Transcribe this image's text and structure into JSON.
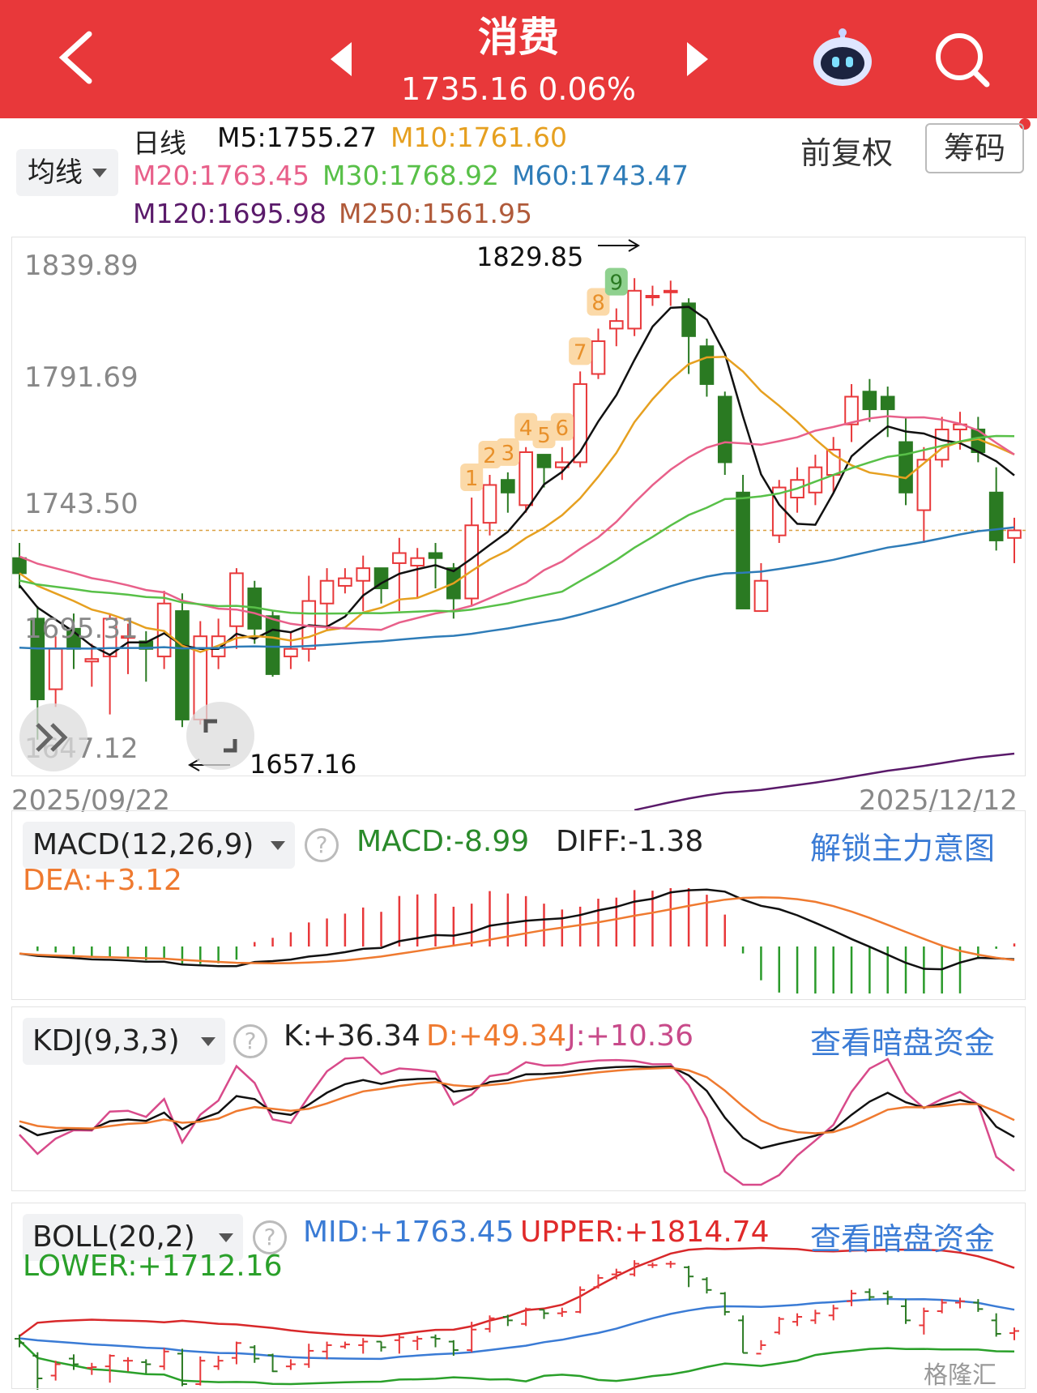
{
  "header": {
    "title": "消费",
    "price_line": "1735.16 0.06%"
  },
  "toolbar": {
    "ma_select": "均线",
    "period": "日线",
    "adjust": "前复权",
    "chips": "筹码"
  },
  "ma": {
    "m5": "M5:1755.27",
    "m10": "M10:1761.60",
    "m20": "M20:1763.45",
    "m30": "M30:1768.92",
    "m60": "M60:1743.47",
    "m120": "M120:1695.98",
    "m250": "M250:1561.95"
  },
  "price_axis": [
    "1839.89",
    "1791.69",
    "1743.50",
    "1695.31",
    "1647.12"
  ],
  "dates": {
    "start": "2025/09/22",
    "end": "2025/12/12"
  },
  "annotations": {
    "high": "1829.85",
    "low": "1657.16",
    "seq": [
      "1",
      "2",
      "3",
      "4",
      "5",
      "6",
      "7",
      "8",
      "9"
    ]
  },
  "macd": {
    "select": "MACD(12,26,9)",
    "macd": "MACD:-8.99",
    "diff": "DIFF:-1.38",
    "dea": "DEA:+3.12",
    "link": "解锁主力意图"
  },
  "kdj": {
    "select": "KDJ(9,3,3)",
    "k": "K:+36.34",
    "d": "D:+49.34",
    "j": "J:+10.36",
    "link": "查看暗盘资金"
  },
  "boll": {
    "select": "BOLL(20,2)",
    "mid": "MID:+1763.45",
    "upper": "UPPER:+1814.74",
    "lower": "LOWER:+1712.16",
    "link": "查看暗盘资金"
  },
  "watermark": "格隆汇",
  "colors": {
    "up": "#e8383a",
    "down": "#2a7a22",
    "m5": "#111111",
    "m10": "#e6a020",
    "m20": "#e8608a",
    "m30": "#58c048",
    "m60": "#2e7cb8",
    "m120": "#5a1a6a",
    "m250": "#b05a3a"
  },
  "chart_data": {
    "type": "candlestick",
    "ylim": [
      1647.12,
      1839.89
    ],
    "candles": [
      [
        1724,
        1718,
        1730,
        1712
      ],
      [
        1700,
        1668,
        1705,
        1652
      ],
      [
        1672,
        1688,
        1693,
        1665
      ],
      [
        1696,
        1688,
        1702,
        1680
      ],
      [
        1683,
        1684,
        1690,
        1673
      ],
      [
        1685,
        1700,
        1702,
        1662
      ],
      [
        1693,
        1693,
        1698,
        1678
      ],
      [
        1691,
        1688,
        1695,
        1675
      ],
      [
        1685,
        1706,
        1711,
        1680
      ],
      [
        1703,
        1660,
        1710,
        1657
      ],
      [
        1660,
        1693,
        1699,
        1658
      ],
      [
        1685,
        1693,
        1700,
        1680
      ],
      [
        1697,
        1718,
        1720,
        1688
      ],
      [
        1712,
        1696,
        1715,
        1690
      ],
      [
        1701,
        1678,
        1703,
        1677
      ],
      [
        1685,
        1688,
        1695,
        1680
      ],
      [
        1688,
        1707,
        1717,
        1683
      ],
      [
        1706,
        1715,
        1720,
        1695
      ],
      [
        1713,
        1716,
        1720,
        1710
      ],
      [
        1715,
        1720,
        1725,
        1703
      ],
      [
        1720,
        1712,
        1720,
        1706
      ],
      [
        1722,
        1726,
        1732,
        1703
      ],
      [
        1721,
        1724,
        1728,
        1708
      ],
      [
        1726,
        1724,
        1730,
        1712
      ],
      [
        1720,
        1708,
        1722,
        1700
      ],
      [
        1708,
        1737,
        1748,
        1705
      ],
      [
        1738,
        1753,
        1757,
        1733
      ],
      [
        1755,
        1750,
        1758,
        1742
      ],
      [
        1745,
        1766,
        1768,
        1742
      ],
      [
        1765,
        1760,
        1765,
        1752
      ],
      [
        1760,
        1762,
        1768,
        1755
      ],
      [
        1762,
        1793,
        1798,
        1760
      ],
      [
        1797,
        1810,
        1815,
        1795
      ],
      [
        1815,
        1818,
        1823,
        1808
      ],
      [
        1815,
        1830,
        1835,
        1812
      ],
      [
        1828,
        1828,
        1832,
        1824
      ],
      [
        1830,
        1830,
        1834,
        1824
      ],
      [
        1825,
        1812,
        1827,
        1797
      ],
      [
        1808,
        1793,
        1811,
        1788
      ],
      [
        1788,
        1762,
        1790,
        1757
      ],
      [
        1750,
        1704,
        1757,
        1704
      ],
      [
        1703,
        1715,
        1722,
        1708
      ],
      [
        1733,
        1752,
        1755,
        1730
      ],
      [
        1748,
        1755,
        1760,
        1742
      ],
      [
        1750,
        1760,
        1765,
        1745
      ],
      [
        1757,
        1767,
        1772,
        1750
      ],
      [
        1777,
        1788,
        1793,
        1770
      ],
      [
        1790,
        1783,
        1795,
        1778
      ],
      [
        1788,
        1783,
        1792,
        1772
      ],
      [
        1770,
        1750,
        1780,
        1745
      ],
      [
        1743,
        1763,
        1768,
        1730
      ],
      [
        1763,
        1775,
        1780,
        1760
      ],
      [
        1775,
        1777,
        1782,
        1767
      ],
      [
        1775,
        1766,
        1780,
        1762
      ],
      [
        1750,
        1731,
        1760,
        1727
      ],
      [
        1732,
        1735,
        1740,
        1722
      ]
    ]
  }
}
